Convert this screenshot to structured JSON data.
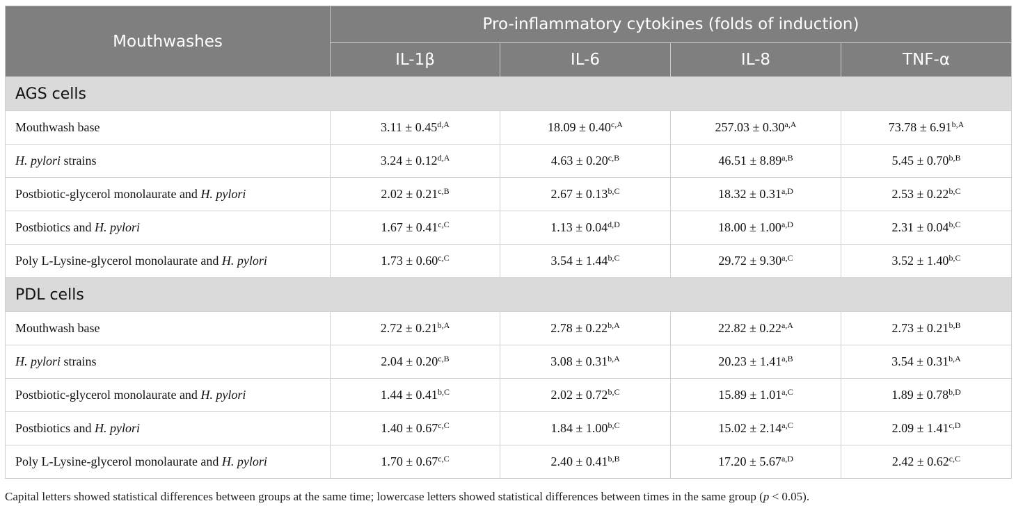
{
  "header": {
    "mouthwashes": "Mouthwashes",
    "group_title": "Pro-inflammatory cytokines (folds of induction)",
    "columns": [
      "IL-1β",
      "IL-6",
      "IL-8",
      "TNF-α"
    ]
  },
  "sections": [
    {
      "title": "AGS cells",
      "rows": [
        {
          "label": "Mouthwash base",
          "label_italic": "",
          "label_suffix": "",
          "cells": [
            {
              "v": "3.11 ± 0.45",
              "s": "d,A"
            },
            {
              "v": "18.09 ± 0.40",
              "s": "c,A"
            },
            {
              "v": "257.03 ± 0.30",
              "s": "a,A"
            },
            {
              "v": "73.78 ± 6.91",
              "s": "b,A"
            }
          ]
        },
        {
          "label": "",
          "label_italic": "H. pylori",
          "label_suffix": " strains",
          "cells": [
            {
              "v": "3.24 ± 0.12",
              "s": "d,A"
            },
            {
              "v": "4.63 ± 0.20",
              "s": "c,B"
            },
            {
              "v": "46.51 ± 8.89",
              "s": "a,B"
            },
            {
              "v": "5.45 ± 0.70",
              "s": "b,B"
            }
          ]
        },
        {
          "label": "Postbiotic-glycerol monolaurate and ",
          "label_italic": "H. pylori",
          "label_suffix": "",
          "cells": [
            {
              "v": "2.02 ± 0.21",
              "s": "c,B"
            },
            {
              "v": "2.67 ± 0.13",
              "s": "b,C"
            },
            {
              "v": "18.32 ± 0.31",
              "s": "a,D"
            },
            {
              "v": "2.53 ± 0.22",
              "s": "b,C"
            }
          ]
        },
        {
          "label": "Postbiotics and ",
          "label_italic": "H. pylori",
          "label_suffix": "",
          "cells": [
            {
              "v": "1.67 ± 0.41",
              "s": "c,C"
            },
            {
              "v": "1.13 ± 0.04",
              "s": "d,D"
            },
            {
              "v": "18.00 ± 1.00",
              "s": "a,D"
            },
            {
              "v": "2.31 ± 0.04",
              "s": "b,C"
            }
          ]
        },
        {
          "label": "Poly L-Lysine-glycerol monolaurate and ",
          "label_italic": "H. pylori",
          "label_suffix": "",
          "cells": [
            {
              "v": "1.73 ± 0.60",
              "s": "c,C"
            },
            {
              "v": "3.54 ± 1.44",
              "s": "b,C"
            },
            {
              "v": "29.72 ± 9.30",
              "s": "a,C"
            },
            {
              "v": "3.52 ± 1.40",
              "s": "b,C"
            }
          ]
        }
      ]
    },
    {
      "title": "PDL cells",
      "rows": [
        {
          "label": "Mouthwash base",
          "label_italic": "",
          "label_suffix": "",
          "cells": [
            {
              "v": "2.72 ± 0.21",
              "s": "b,A"
            },
            {
              "v": "2.78 ± 0.22",
              "s": "b,A"
            },
            {
              "v": "22.82 ± 0.22",
              "s": "a,A"
            },
            {
              "v": "2.73 ± 0.21",
              "s": "b,B"
            }
          ]
        },
        {
          "label": "",
          "label_italic": "H. pylori",
          "label_suffix": " strains",
          "cells": [
            {
              "v": "2.04 ± 0.20",
              "s": "c,B"
            },
            {
              "v": "3.08 ± 0.31",
              "s": "b,A"
            },
            {
              "v": "20.23 ± 1.41",
              "s": "a,B"
            },
            {
              "v": "3.54 ± 0.31",
              "s": "b,A"
            }
          ]
        },
        {
          "label": "Postbiotic-glycerol monolaurate and ",
          "label_italic": "H. pylori",
          "label_suffix": "",
          "cells": [
            {
              "v": "1.44 ± 0.41",
              "s": "b,C"
            },
            {
              "v": "2.02 ± 0.72",
              "s": "b,C"
            },
            {
              "v": "15.89 ± 1.01",
              "s": "a,C"
            },
            {
              "v": "1.89 ± 0.78",
              "s": "b,D"
            }
          ]
        },
        {
          "label": "Postbiotics and ",
          "label_italic": "H. pylori",
          "label_suffix": "",
          "cells": [
            {
              "v": "1.40 ± 0.67",
              "s": "c,C"
            },
            {
              "v": "1.84 ± 1.00",
              "s": "b,C"
            },
            {
              "v": "15.02 ± 2.14",
              "s": "a,C"
            },
            {
              "v": "2.09 ± 1.41",
              "s": "c,D"
            }
          ]
        },
        {
          "label": "Poly L-Lysine-glycerol monolaurate and ",
          "label_italic": "H. pylori",
          "label_suffix": "",
          "cells": [
            {
              "v": "1.70 ± 0.67",
              "s": "c,C"
            },
            {
              "v": "2.40 ± 0.41",
              "s": "b,B"
            },
            {
              "v": "17.20 ± 5.67",
              "s": "a,D"
            },
            {
              "v": "2.42 ± 0.62",
              "s": "c,C"
            }
          ]
        }
      ]
    }
  ],
  "footnote": {
    "text": "Capital letters showed statistical differences between groups at the same time; lowercase letters showed statistical differences between times in the same group (",
    "italic": "p",
    "suffix": " < 0.05)."
  }
}
